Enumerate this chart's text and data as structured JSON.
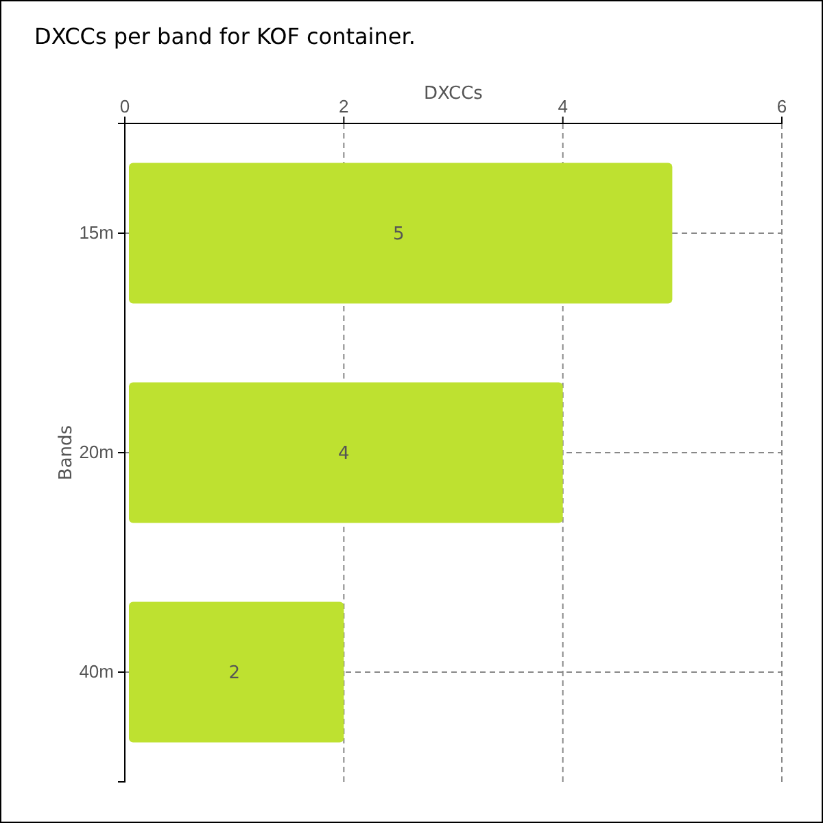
{
  "chart_data": {
    "type": "bar",
    "orientation": "horizontal",
    "title": "DXCCs per band for KOF container.",
    "xlabel": "DXCCs",
    "ylabel": "Bands",
    "categories": [
      "15m",
      "20m",
      "40m"
    ],
    "values": [
      5,
      4,
      2
    ],
    "color": "#bee130",
    "xlim": [
      0,
      6
    ],
    "xticks": [
      0,
      2,
      4,
      6
    ],
    "grid": true,
    "data_labels": true
  }
}
